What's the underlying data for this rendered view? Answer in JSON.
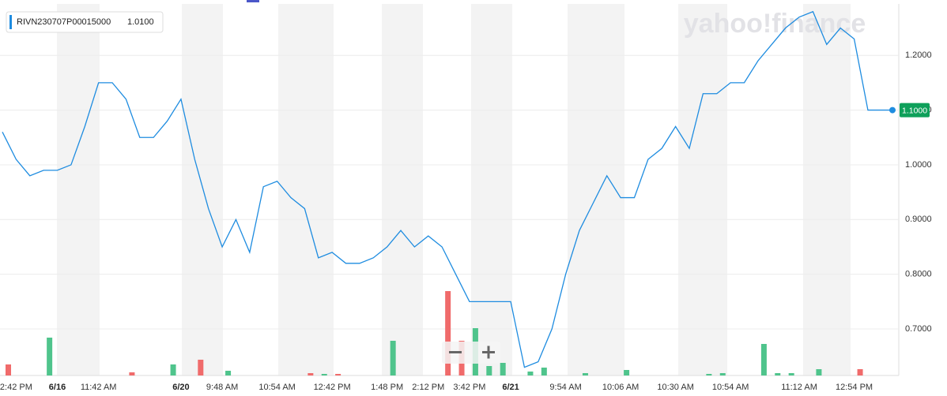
{
  "chart_data": {
    "type": "line",
    "series_name": "RIVN230707P00015000",
    "legend_value": "1.0100",
    "watermark": "yahoo!finance",
    "color": "#1e8ce0",
    "categories": [
      null,
      "2:42 PM",
      null,
      null,
      "6/16",
      null,
      null,
      "11:42 AM",
      null,
      null,
      null,
      null,
      null,
      "6/20",
      null,
      null,
      "9:48 AM",
      null,
      null,
      null,
      "10:54 AM",
      null,
      null,
      null,
      "12:42 PM",
      null,
      null,
      null,
      "1:48 PM",
      null,
      null,
      "2:12 PM",
      null,
      null,
      "3:42 PM",
      null,
      null,
      "6/21",
      null,
      null,
      null,
      "9:54 AM",
      null,
      null,
      null,
      "10:06 AM",
      null,
      null,
      null,
      "10:30 AM",
      null,
      null,
      null,
      "10:54 AM",
      null,
      null,
      null,
      null,
      "11:12 AM",
      null,
      null,
      null,
      "12:54 PM",
      null,
      null,
      null
    ],
    "values": [
      1.06,
      1.01,
      0.98,
      0.99,
      0.99,
      1.0,
      1.07,
      1.15,
      1.15,
      1.12,
      1.05,
      1.05,
      1.08,
      1.12,
      1.01,
      0.92,
      0.85,
      0.9,
      0.84,
      0.96,
      0.97,
      0.94,
      0.92,
      0.83,
      0.84,
      0.82,
      0.82,
      0.83,
      0.85,
      0.88,
      0.85,
      0.87,
      0.85,
      0.8,
      0.75,
      0.75,
      0.75,
      0.75,
      0.63,
      0.64,
      0.7,
      0.8,
      0.88,
      0.93,
      0.98,
      0.94,
      0.94,
      1.01,
      1.03,
      1.07,
      1.03,
      1.13,
      1.13,
      1.15,
      1.15,
      1.19,
      1.22,
      1.25,
      1.27,
      1.28,
      1.22,
      1.25,
      1.23,
      1.1,
      1.1,
      1.1
    ],
    "last_value_label": "1.1000",
    "last_label_color": "#0ea05a",
    "volume_up": {
      "color": "#4fc48c",
      "values": [
        null,
        null,
        null,
        48,
        null,
        null,
        null,
        null,
        null,
        null,
        null,
        null,
        14,
        null,
        null,
        null,
        6,
        null,
        null,
        null,
        null,
        null,
        null,
        2,
        null,
        null,
        null,
        null,
        44,
        null,
        null,
        null,
        null,
        null,
        60,
        12,
        16,
        null,
        5,
        10,
        null,
        null,
        3,
        null,
        null,
        7,
        null,
        null,
        null,
        null,
        null,
        2,
        3,
        null,
        null,
        40,
        3,
        3,
        null,
        8,
        null,
        null,
        null,
        null,
        null,
        null
      ]
    },
    "volume_down": {
      "color": "#f06b6b",
      "values": [
        14,
        null,
        null,
        null,
        null,
        null,
        null,
        null,
        null,
        4,
        null,
        null,
        null,
        null,
        20,
        null,
        null,
        null,
        null,
        null,
        null,
        null,
        3,
        null,
        2,
        null,
        null,
        null,
        null,
        null,
        null,
        null,
        107,
        44,
        null,
        null,
        null,
        null,
        null,
        null,
        null,
        null,
        null,
        null,
        null,
        null,
        null,
        null,
        null,
        null,
        null,
        null,
        null,
        null,
        null,
        null,
        null,
        null,
        null,
        null,
        null,
        null,
        8,
        null,
        null,
        null
      ]
    },
    "ylim": [
      0.615,
      1.294
    ],
    "yticks": [
      {
        "value": 0.7,
        "label": "0.7000"
      },
      {
        "value": 0.8,
        "label": "0.8000"
      },
      {
        "value": 0.9,
        "label": "0.9000"
      },
      {
        "value": 1.0,
        "label": "1.0000"
      },
      {
        "value": 1.1,
        "label": "1.1000"
      },
      {
        "value": 1.2,
        "label": "1.2000"
      }
    ],
    "grid": true
  }
}
